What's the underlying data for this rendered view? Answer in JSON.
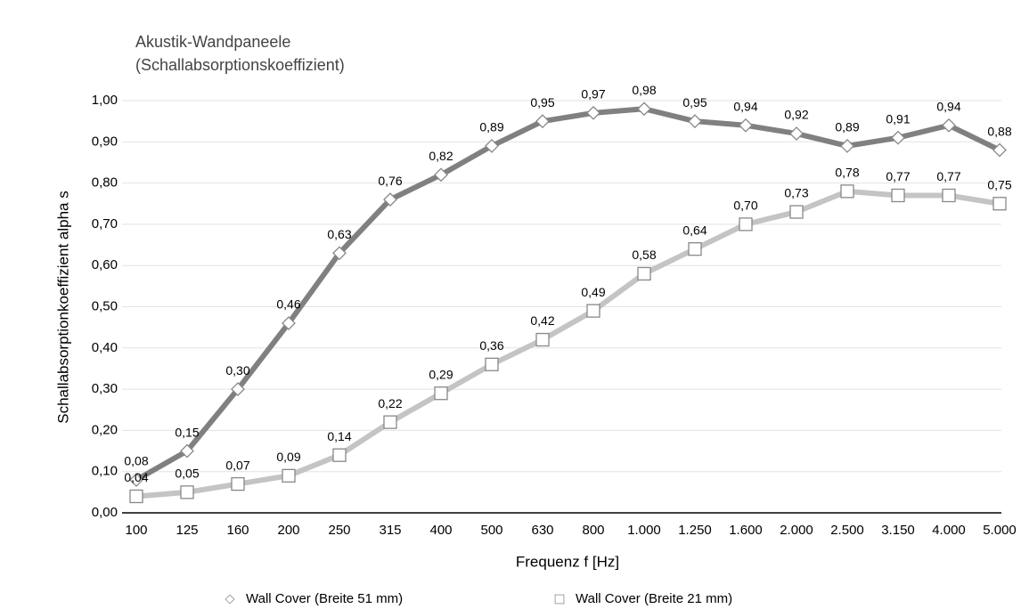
{
  "chart_data": {
    "type": "line",
    "title": "Akustik-Wandpaneele",
    "subtitle": "(Schallabsorptionskoeffizient)",
    "x_label": "Frequenz f [Hz]",
    "y_label": "Schallabsorptionkoeffizient alpha s",
    "categories": [
      "100",
      "125",
      "160",
      "200",
      "250",
      "315",
      "400",
      "500",
      "630",
      "800",
      "1.000",
      "1.250",
      "1.600",
      "2.000",
      "2.500",
      "3.150",
      "4.000",
      "5.000"
    ],
    "series": [
      {
        "name": "Wall Cover (Breite 51 mm)",
        "color": "#808080",
        "marker": "diamond",
        "values": [
          0.08,
          0.15,
          0.3,
          0.46,
          0.63,
          0.76,
          0.82,
          0.89,
          0.95,
          0.97,
          0.98,
          0.95,
          0.94,
          0.92,
          0.89,
          0.91,
          0.94,
          0.88
        ],
        "value_labels": [
          "0,08",
          "0,15",
          "0,30",
          "0,46",
          "0,63",
          "0,76",
          "0,82",
          "0,89",
          "0,95",
          "0,97",
          "0,98",
          "0,95",
          "0,94",
          "0,92",
          "0,89",
          "0,91",
          "0,94",
          "0,88"
        ]
      },
      {
        "name": "Wall Cover (Breite 21 mm)",
        "color": "#c4c4c4",
        "marker": "square",
        "values": [
          0.04,
          0.05,
          0.07,
          0.09,
          0.14,
          0.22,
          0.29,
          0.36,
          0.42,
          0.49,
          0.58,
          0.64,
          0.7,
          0.73,
          0.78,
          0.77,
          0.77,
          0.75
        ],
        "value_labels": [
          "0,04",
          "0,05",
          "0,07",
          "0,09",
          "0,14",
          "0,22",
          "0,29",
          "0,36",
          "0,42",
          "0,49",
          "0,58",
          "0,64",
          "0,70",
          "0,73",
          "0,78",
          "0,77",
          "0,77",
          "0,75"
        ]
      }
    ],
    "ylim": [
      0,
      1
    ],
    "yticks": [
      {
        "value": 0,
        "label": "0,00"
      },
      {
        "value": 0.1,
        "label": "0,10"
      },
      {
        "value": 0.2,
        "label": "0,20"
      },
      {
        "value": 0.3,
        "label": "0,30"
      },
      {
        "value": 0.4,
        "label": "0,40"
      },
      {
        "value": 0.5,
        "label": "0,50"
      },
      {
        "value": 0.6,
        "label": "0,60"
      },
      {
        "value": 0.7,
        "label": "0,70"
      },
      {
        "value": 0.8,
        "label": "0,80"
      },
      {
        "value": 0.9,
        "label": "0,90"
      },
      {
        "value": 1,
        "label": "1,00"
      }
    ],
    "grid": true,
    "legend": "bottom"
  }
}
